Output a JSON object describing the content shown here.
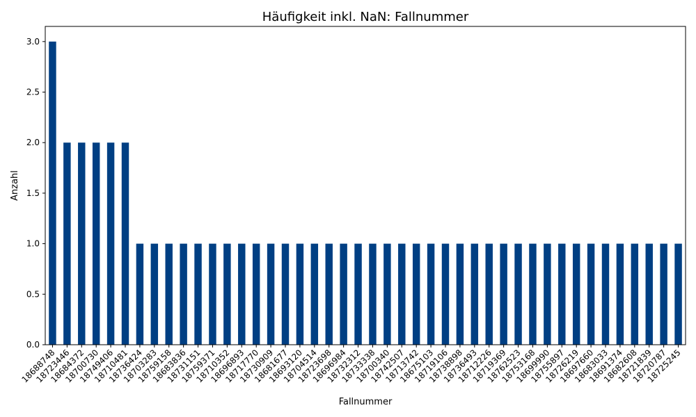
{
  "chart_data": {
    "type": "bar",
    "title": "Häufigkeit inkl. NaN: Fallnummer",
    "xlabel": "Fallnummer",
    "ylabel": "Anzahl",
    "ylim": [
      0,
      3.15
    ],
    "yticks": [
      "0.0",
      "0.5",
      "1.0",
      "1.5",
      "2.0",
      "2.5",
      "3.0"
    ],
    "bar_color": "#003f83",
    "grid": false,
    "categories": [
      "18688748",
      "18723446",
      "18684372",
      "18700730",
      "18749406",
      "18710481",
      "18736424",
      "18703283",
      "18759158",
      "18683836",
      "18731151",
      "18759371",
      "18710352",
      "18696893",
      "18717770",
      "18730909",
      "18681677",
      "18693120",
      "18704514",
      "18723698",
      "18696984",
      "18732312",
      "18733338",
      "18700340",
      "18742507",
      "18713742",
      "18675103",
      "18719106",
      "18738898",
      "18736493",
      "18712226",
      "18719369",
      "18762523",
      "18753168",
      "18699990",
      "18755897",
      "18726219",
      "18697660",
      "18683033",
      "18691374",
      "18682608",
      "18721839",
      "18720787",
      "18725245"
    ],
    "values": [
      3,
      2,
      2,
      2,
      2,
      2,
      1,
      1,
      1,
      1,
      1,
      1,
      1,
      1,
      1,
      1,
      1,
      1,
      1,
      1,
      1,
      1,
      1,
      1,
      1,
      1,
      1,
      1,
      1,
      1,
      1,
      1,
      1,
      1,
      1,
      1,
      1,
      1,
      1,
      1,
      1,
      1,
      1,
      1
    ]
  }
}
